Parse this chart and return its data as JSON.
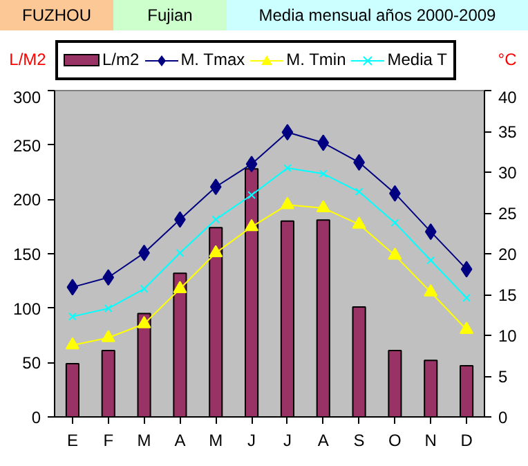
{
  "chart_data": {
    "type": "bar",
    "title": "FUZHOU",
    "subtitle": "Fujian",
    "annotations": [
      "Media mensual años 2000-2009"
    ],
    "ylabel": "L/M2",
    "y2label": "°C",
    "categories": [
      "E",
      "F",
      "M",
      "A",
      "M",
      "J",
      "J",
      "A",
      "S",
      "O",
      "N",
      "D"
    ],
    "series": [
      {
        "name": "L/m2",
        "color": "#993366",
        "values": [
          49,
          61,
          95,
          132,
          174,
          228,
          180,
          181,
          101,
          61,
          52,
          47
        ]
      },
      {
        "name": "M. Tmax",
        "type": "line",
        "axis": "y2",
        "color": "#000080",
        "marker": "diamond",
        "values": [
          15.9,
          17.1,
          20.1,
          24.2,
          28.2,
          31.0,
          34.9,
          33.6,
          31.2,
          27.4,
          22.7,
          18.1
        ]
      },
      {
        "name": "M. Tmin",
        "type": "line",
        "axis": "y2",
        "color": "#ffff00",
        "marker": "triangle",
        "values": [
          8.8,
          9.7,
          11.4,
          15.7,
          20.1,
          23.3,
          26.0,
          25.6,
          23.6,
          19.8,
          15.3,
          10.7
        ]
      },
      {
        "name": "Media T",
        "type": "line",
        "axis": "y2",
        "color": "#00ffff",
        "marker": "cross",
        "values": [
          12.3,
          13.3,
          15.7,
          20.1,
          24.2,
          27.2,
          30.5,
          29.8,
          27.6,
          23.8,
          19.2,
          14.6
        ]
      }
    ],
    "ylim": [
      0,
      300
    ],
    "yticks": [
      0,
      50,
      100,
      150,
      200,
      250,
      300
    ],
    "y2lim": [
      0,
      40
    ],
    "y2ticks": [
      0,
      5,
      10,
      15,
      20,
      25,
      30,
      35,
      40
    ],
    "legend": "top",
    "grid": false
  }
}
